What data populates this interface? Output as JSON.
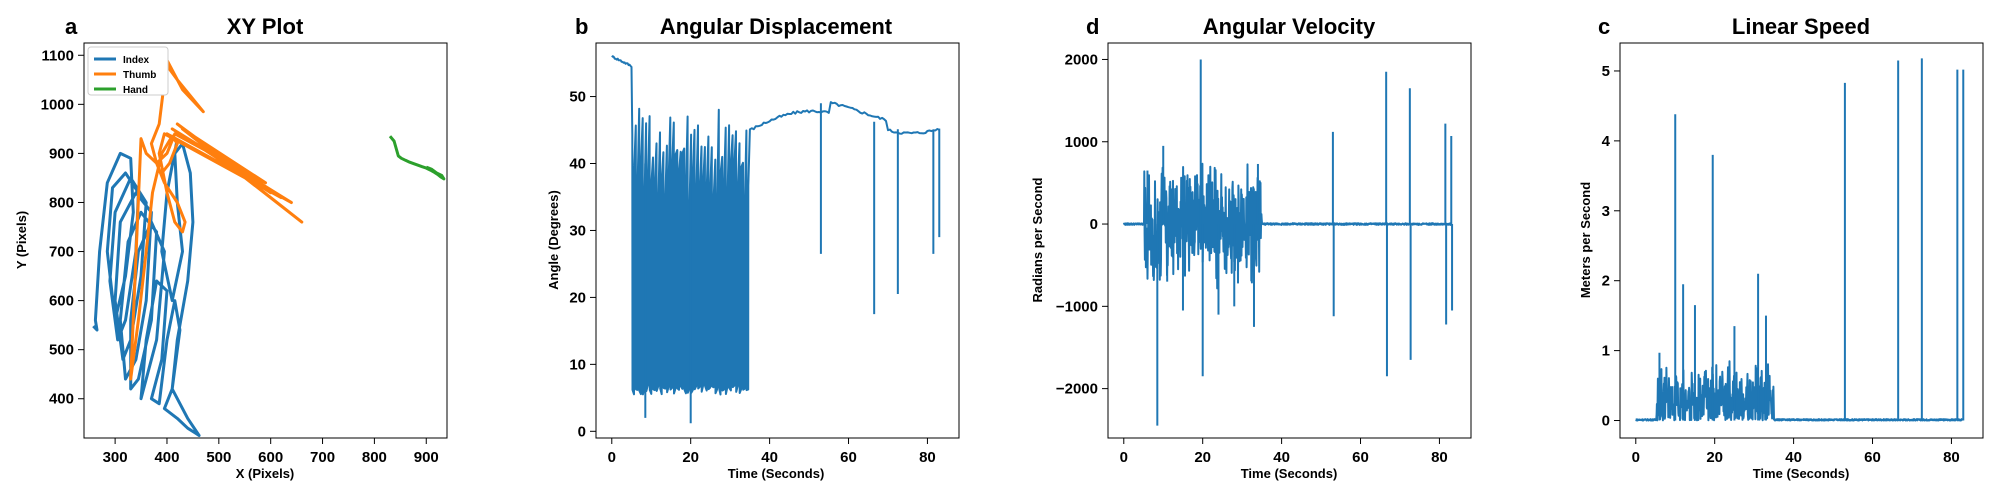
{
  "colors": {
    "blue": "#1f77b4",
    "orange": "#ff7f0e",
    "green": "#2ca02c"
  },
  "chart_data": [
    {
      "type": "line",
      "letter": "a",
      "title": "XY Plot",
      "xlabel": "X (Pixels)",
      "ylabel": "Y (Pixels)",
      "xlim": [
        240,
        940
      ],
      "ylim": [
        320,
        1125
      ],
      "xticks": [
        300,
        400,
        500,
        600,
        700,
        800,
        900
      ],
      "yticks": [
        400,
        500,
        600,
        700,
        800,
        900,
        1000,
        1100
      ],
      "legend": {
        "position": "top-left",
        "entries": [
          "Index",
          "Thumb",
          "Hand"
        ]
      },
      "series": [
        {
          "name": "Index",
          "color": "#1f77b4",
          "points": [
            [
              258,
              548
            ],
            [
              265,
              540
            ],
            [
              262,
              560
            ],
            [
              270,
              700
            ],
            [
              285,
              840
            ],
            [
              310,
              900
            ],
            [
              330,
              890
            ],
            [
              335,
              780
            ],
            [
              320,
              650
            ],
            [
              300,
              560
            ],
            [
              285,
              700
            ],
            [
              295,
              830
            ],
            [
              320,
              860
            ],
            [
              345,
              820
            ],
            [
              340,
              700
            ],
            [
              320,
              560
            ],
            [
              305,
              520
            ],
            [
              290,
              640
            ],
            [
              300,
              780
            ],
            [
              330,
              850
            ],
            [
              360,
              800
            ],
            [
              350,
              650
            ],
            [
              330,
              520
            ],
            [
              315,
              480
            ],
            [
              300,
              600
            ],
            [
              310,
              760
            ],
            [
              340,
              820
            ],
            [
              370,
              780
            ],
            [
              360,
              600
            ],
            [
              340,
              480
            ],
            [
              320,
              440
            ],
            [
              310,
              560
            ],
            [
              325,
              720
            ],
            [
              350,
              780
            ],
            [
              380,
              740
            ],
            [
              370,
              560
            ],
            [
              345,
              440
            ],
            [
              330,
              420
            ],
            [
              330,
              560
            ],
            [
              345,
              700
            ],
            [
              370,
              760
            ],
            [
              395,
              700
            ],
            [
              380,
              520
            ],
            [
              355,
              420
            ],
            [
              350,
              400
            ],
            [
              360,
              520
            ],
            [
              380,
              640
            ],
            [
              400,
              620
            ],
            [
              390,
              480
            ],
            [
              370,
              400
            ],
            [
              385,
              390
            ],
            [
              400,
              520
            ],
            [
              415,
              600
            ],
            [
              425,
              540
            ],
            [
              410,
              420
            ],
            [
              395,
              380
            ],
            [
              420,
              360
            ],
            [
              440,
              340
            ],
            [
              455,
              330
            ],
            [
              462,
              325
            ],
            [
              440,
              360
            ],
            [
              410,
              420
            ],
            [
              420,
              520
            ],
            [
              440,
              640
            ],
            [
              450,
              760
            ],
            [
              445,
              860
            ],
            [
              430,
              920
            ],
            [
              415,
              900
            ],
            [
              420,
              800
            ],
            [
              430,
              700
            ],
            [
              410,
              600
            ],
            [
              390,
              700
            ],
            [
              400,
              820
            ],
            [
              420,
              930
            ]
          ]
        },
        {
          "name": "Thumb",
          "color": "#ff7f0e",
          "points": [
            [
              375,
              1115
            ],
            [
              420,
              1050
            ],
            [
              470,
              985
            ],
            [
              430,
              1030
            ],
            [
              400,
              1090
            ],
            [
              385,
              960
            ],
            [
              370,
              920
            ],
            [
              380,
              880
            ],
            [
              395,
              840
            ],
            [
              420,
              800
            ],
            [
              435,
              760
            ],
            [
              430,
              740
            ],
            [
              415,
              760
            ],
            [
              400,
              820
            ],
            [
              385,
              900
            ],
            [
              395,
              940
            ],
            [
              620,
              810
            ],
            [
              400,
              940
            ],
            [
              640,
              800
            ],
            [
              410,
              950
            ],
            [
              600,
              820
            ],
            [
              420,
              960
            ],
            [
              660,
              760
            ],
            [
              430,
              950
            ],
            [
              590,
              840
            ],
            [
              415,
              940
            ],
            [
              400,
              900
            ],
            [
              380,
              880
            ],
            [
              360,
              900
            ],
            [
              350,
              930
            ],
            [
              330,
              440
            ],
            [
              345,
              560
            ],
            [
              360,
              700
            ],
            [
              372,
              820
            ],
            [
              390,
              900
            ],
            [
              410,
              935
            ],
            [
              420,
              920
            ],
            [
              405,
              880
            ],
            [
              390,
              860
            ]
          ]
        },
        {
          "name": "Hand",
          "color": "#2ca02c",
          "points": [
            [
              830,
              935
            ],
            [
              838,
              925
            ],
            [
              842,
              910
            ],
            [
              846,
              895
            ],
            [
              852,
              890
            ],
            [
              860,
              886
            ],
            [
              868,
              882
            ],
            [
              876,
              879
            ],
            [
              884,
              876
            ],
            [
              892,
              873
            ],
            [
              900,
              870
            ],
            [
              908,
              866
            ],
            [
              916,
              861
            ],
            [
              922,
              857
            ],
            [
              928,
              852
            ],
            [
              934,
              848
            ],
            [
              930,
              855
            ],
            [
              920,
              860
            ],
            [
              910,
              868
            ],
            [
              900,
              872
            ]
          ]
        }
      ]
    },
    {
      "type": "line",
      "letter": "b",
      "title": "Angular Displacement",
      "xlabel": "Time (Seconds)",
      "ylabel": "Angle (Degrees)",
      "xlim": [
        -4,
        88
      ],
      "ylim": [
        -1,
        58
      ],
      "xticks": [
        0,
        20,
        40,
        60,
        80
      ],
      "yticks": [
        0,
        10,
        20,
        30,
        40,
        50
      ],
      "series": [
        {
          "name": "",
          "color": "#1f77b4",
          "pattern": {
            "t_start": 0,
            "t_osc_start": 5.2,
            "t_osc_end": 35,
            "t_end": 83,
            "start_level": 56,
            "pre_osc_level": 54.5,
            "osc_high": 44,
            "osc_low": 5.5,
            "osc_count": 34,
            "post_level_start": 45,
            "post_level_end": 47
          },
          "dips": [
            [
              8.5,
              2
            ],
            [
              20,
              1.2
            ],
            [
              53,
              26.5
            ],
            [
              66.5,
              17.5
            ],
            [
              72.5,
              20.5
            ],
            [
              81.5,
              26.5
            ],
            [
              83,
              29
            ]
          ]
        }
      ]
    },
    {
      "type": "line",
      "letter": "d",
      "title": "Angular Velocity",
      "xlabel": "Time (Seconds)",
      "ylabel": "Radians per Second",
      "xlim": [
        -4,
        88
      ],
      "ylim": [
        -2600,
        2200
      ],
      "xticks": [
        0,
        20,
        40,
        60,
        80
      ],
      "yticks": [
        -2000,
        -1000,
        0,
        1000,
        2000
      ],
      "series": [
        {
          "name": "",
          "color": "#1f77b4",
          "pattern": {
            "t_start": 0,
            "t_osc_start": 5.2,
            "t_osc_end": 35,
            "t_end": 83,
            "osc_amp": 850
          },
          "spikes": [
            [
              6,
              650
            ],
            [
              8.5,
              -2450
            ],
            [
              10,
              950
            ],
            [
              11,
              -700
            ],
            [
              15,
              -1050
            ],
            [
              19.5,
              2000
            ],
            [
              20,
              -1850
            ],
            [
              24,
              -1100
            ],
            [
              28,
              -1000
            ],
            [
              33,
              -1250
            ],
            [
              34,
              730
            ],
            [
              53,
              1120
            ],
            [
              53.2,
              -1120
            ],
            [
              66.5,
              1850
            ],
            [
              66.7,
              -1850
            ],
            [
              72.5,
              1650
            ],
            [
              72.7,
              -1650
            ],
            [
              81.5,
              1220
            ],
            [
              81.7,
              -1220
            ],
            [
              83,
              1070
            ],
            [
              83.2,
              -1050
            ]
          ]
        }
      ]
    },
    {
      "type": "line",
      "letter": "c",
      "title": "Linear Speed",
      "xlabel": "Time (Seconds)",
      "ylabel": "Meters per Second",
      "xlim": [
        -4,
        88
      ],
      "ylim": [
        -0.25,
        5.4
      ],
      "xticks": [
        0,
        20,
        40,
        60,
        80
      ],
      "yticks": [
        0,
        1,
        2,
        3,
        4,
        5
      ],
      "series": [
        {
          "name": "",
          "color": "#1f77b4",
          "pattern": {
            "t_start": 0,
            "t_osc_start": 5.2,
            "t_osc_end": 35,
            "t_end": 83,
            "osc_amp": 0.9
          },
          "spikes": [
            [
              6,
              0.97
            ],
            [
              10,
              4.38
            ],
            [
              12,
              1.95
            ],
            [
              15,
              1.65
            ],
            [
              19.5,
              3.8
            ],
            [
              25,
              1.35
            ],
            [
              31,
              2.1
            ],
            [
              33,
              1.5
            ],
            [
              53,
              4.83
            ],
            [
              66.5,
              5.15
            ],
            [
              72.5,
              5.18
            ],
            [
              81.5,
              5.02
            ],
            [
              83,
              5.02
            ]
          ]
        }
      ]
    }
  ]
}
